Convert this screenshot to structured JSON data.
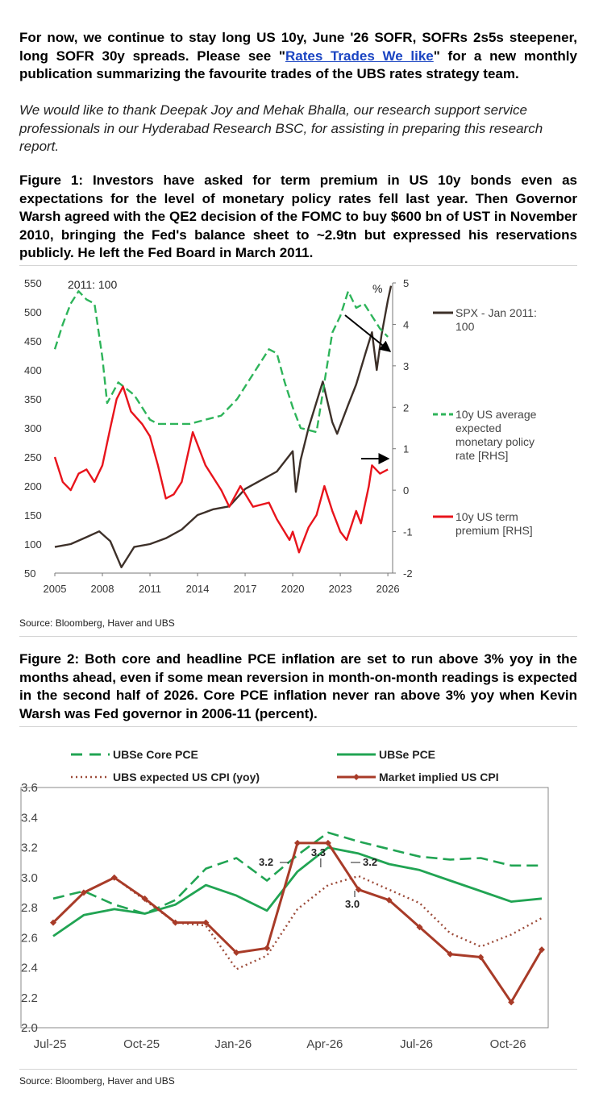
{
  "intro": {
    "before": "For now, we continue to stay long US 10y, June '26 SOFR, SOFRs 2s5s steepener, long SOFR 30y spreads. Please see \"",
    "link": "Rates Trades We like",
    "after": "\" for a new monthly publication summarizing the favourite trades of the UBS rates strategy team."
  },
  "thanks": "We would like to thank Deepak Joy and Mehak Bhalla, our research support service professionals in our Hyderabad Research BSC, for assisting in preparing this research report.",
  "figure1": {
    "title": "Figure 1: Investors have asked for term premium in US 10y bonds even as expectations for the level of monetary policy rates fell last year. Then Governor Warsh agreed with the QE2 decision of the FOMC to buy $600 bn of UST in November 2010, bringing the Fed's balance sheet to ~2.9tn but expressed his reservations publicly. He left the Fed Board in March 2011.",
    "source": "Source: Bloomberg, Haver and UBS"
  },
  "figure2": {
    "title": "Figure 2: Both core and headline PCE inflation are set to run above 3% yoy in the months ahead, even if some mean reversion in month-on-month readings is expected in the second half of 2026. Core PCE inflation never ran above 3% yoy when Kevin Warsh was Fed governor in 2006-11 (percent).",
    "source": "Source: Bloomberg, Haver and UBS"
  },
  "chart_data": [
    {
      "type": "line",
      "title": "",
      "annotation": "2011: 100",
      "unit_right": "%",
      "x_ticks": [
        "2005",
        "2008",
        "2011",
        "2014",
        "2017",
        "2020",
        "2023",
        "2026"
      ],
      "x_range": [
        2005,
        2026.3
      ],
      "y_left_ticks": [
        "550",
        "500",
        "450",
        "400",
        "350",
        "300",
        "250",
        "200",
        "150",
        "100",
        "50"
      ],
      "ylim_left": [
        50,
        550
      ],
      "y_right_ticks": [
        "5",
        "4",
        "3",
        "2",
        "1",
        "0",
        "-1",
        "-2"
      ],
      "ylim_right": [
        -2,
        5
      ],
      "colors": {
        "spx": "#3d3029",
        "expected": "#2eb45a",
        "term": "#e8141c"
      },
      "series": [
        {
          "name": "SPX - Jan 2011: 100",
          "axis": "left",
          "style": "solid",
          "color": "#3d3029",
          "x": [
            2005.0,
            2006.0,
            2007.0,
            2007.8,
            2008.5,
            2009.2,
            2010.0,
            2011.0,
            2012.0,
            2013.0,
            2014.0,
            2015.0,
            2016.0,
            2017.0,
            2018.0,
            2019.0,
            2020.0,
            2020.2,
            2020.5,
            2021.0,
            2021.9,
            2022.5,
            2022.8,
            2023.5,
            2024.0,
            2024.6,
            2025.0,
            2025.3,
            2025.6,
            2026.0,
            2026.2
          ],
          "values": [
            95,
            100,
            112,
            122,
            105,
            60,
            95,
            100,
            110,
            125,
            150,
            160,
            165,
            195,
            210,
            225,
            260,
            190,
            245,
            300,
            380,
            310,
            290,
            340,
            375,
            430,
            465,
            400,
            460,
            520,
            545
          ]
        },
        {
          "name": "10y US average expected monetary policy rate [RHS]",
          "axis": "right",
          "style": "dashed",
          "color": "#2eb45a",
          "x": [
            2005.0,
            2005.5,
            2006.0,
            2006.5,
            2007.0,
            2007.5,
            2008.0,
            2008.3,
            2009.0,
            2010.0,
            2011.0,
            2011.5,
            2012.5,
            2013.5,
            2014.5,
            2015.5,
            2016.5,
            2017.5,
            2018.5,
            2019.0,
            2019.5,
            2020.0,
            2020.5,
            2021.5,
            2022.0,
            2022.5,
            2023.0,
            2023.5,
            2024.0,
            2024.5,
            2025.0,
            2025.5,
            2026.0
          ],
          "values": [
            3.4,
            4.0,
            4.5,
            4.8,
            4.6,
            4.5,
            3.2,
            2.1,
            2.6,
            2.3,
            1.7,
            1.6,
            1.6,
            1.6,
            1.7,
            1.8,
            2.2,
            2.8,
            3.4,
            3.3,
            2.6,
            2.0,
            1.5,
            1.4,
            2.6,
            3.8,
            4.2,
            4.8,
            4.4,
            4.5,
            4.2,
            3.9,
            3.7
          ]
        },
        {
          "name": "10y US term premium [RHS]",
          "axis": "right",
          "style": "solid",
          "color": "#e8141c",
          "x": [
            2005.0,
            2005.5,
            2006.0,
            2006.5,
            2007.0,
            2007.5,
            2008.0,
            2008.5,
            2008.9,
            2009.3,
            2009.8,
            2010.5,
            2011.0,
            2011.5,
            2012.0,
            2012.5,
            2013.0,
            2013.7,
            2014.5,
            2015.5,
            2016.0,
            2016.7,
            2017.5,
            2018.5,
            2019.0,
            2019.8,
            2020.0,
            2020.4,
            2021.0,
            2021.5,
            2022.0,
            2022.5,
            2023.0,
            2023.4,
            2024.0,
            2024.3,
            2024.8,
            2025.0,
            2025.5,
            2026.0
          ],
          "values": [
            0.8,
            0.2,
            0.0,
            0.4,
            0.5,
            0.2,
            0.6,
            1.5,
            2.2,
            2.5,
            1.9,
            1.6,
            1.3,
            0.6,
            -0.2,
            -0.1,
            0.2,
            1.4,
            0.6,
            0.0,
            -0.4,
            0.1,
            -0.4,
            -0.3,
            -0.7,
            -1.2,
            -1.0,
            -1.5,
            -0.9,
            -0.6,
            0.1,
            -0.5,
            -1.0,
            -1.2,
            -0.5,
            -0.8,
            0.1,
            0.6,
            0.4,
            0.5
          ]
        }
      ],
      "legend": [
        "SPX - Jan 2011: 100",
        "10y US average expected monetary policy rate [RHS]",
        "10y US term premium [RHS]"
      ],
      "legend_lines": [
        [
          "SPX - Jan 2011:",
          "100"
        ],
        [
          "10y US average",
          "expected",
          "monetary policy",
          "rate [RHS]"
        ],
        [
          "10y US term",
          "premium [RHS]"
        ]
      ]
    },
    {
      "type": "line",
      "title": "",
      "categories": [
        "Jul-25",
        "Aug-25",
        "Sep-25",
        "Oct-25",
        "Nov-25",
        "Dec-25",
        "Jan-26",
        "Feb-26",
        "Mar-26",
        "Apr-26",
        "May-26",
        "Jun-26",
        "Jul-26",
        "Aug-26",
        "Sep-26",
        "Oct-26",
        "Nov-26"
      ],
      "x_tick_labels": [
        "Jul-25",
        "Oct-25",
        "Jan-26",
        "Apr-26",
        "Jul-26",
        "Oct-26"
      ],
      "x_tick_index": [
        0,
        3,
        6,
        9,
        12,
        15
      ],
      "y_ticks": [
        "3.6",
        "3.4",
        "3.2",
        "3.0",
        "2.8",
        "2.6",
        "2.4",
        "2.2",
        "2.0"
      ],
      "ylim": [
        2.0,
        3.6
      ],
      "colors": {
        "core": "#21a453",
        "pce": "#21a453",
        "cpi_exp": "#9c4a38",
        "market": "#a83b28"
      },
      "series": [
        {
          "name": "UBSe Core PCE",
          "style": "dashed",
          "color": "#21a453",
          "values": [
            2.86,
            2.91,
            2.82,
            2.76,
            2.85,
            3.06,
            3.13,
            2.98,
            3.15,
            3.3,
            3.24,
            3.19,
            3.14,
            3.12,
            3.13,
            3.08,
            3.08
          ]
        },
        {
          "name": "UBSe PCE",
          "style": "solid",
          "color": "#21a453",
          "values": [
            2.61,
            2.75,
            2.79,
            2.76,
            2.82,
            2.95,
            2.88,
            2.78,
            3.04,
            3.2,
            3.16,
            3.09,
            3.05,
            2.98,
            2.91,
            2.84,
            2.86
          ]
        },
        {
          "name": "UBS expected US CPI (yoy)",
          "style": "dotted",
          "color": "#9c4a38",
          "values": [
            2.7,
            2.9,
            3.0,
            2.85,
            2.7,
            2.68,
            2.39,
            2.48,
            2.79,
            2.95,
            3.01,
            2.92,
            2.83,
            2.63,
            2.54,
            2.62,
            2.73
          ]
        },
        {
          "name": "Market implied US CPI",
          "style": "solid-markers",
          "color": "#a83b28",
          "values": [
            2.7,
            2.9,
            3.0,
            2.86,
            2.7,
            2.7,
            2.5,
            2.53,
            3.23,
            3.23,
            2.92,
            2.85,
            2.67,
            2.49,
            2.47,
            2.17,
            2.52
          ]
        }
      ],
      "legend": [
        "UBSe Core PCE",
        "UBSe PCE",
        "UBS expected US CPI (yoy)",
        "Market implied US CPI"
      ],
      "annotations": [
        "3.3",
        "3.2",
        "3.2",
        "3.0"
      ]
    }
  ]
}
